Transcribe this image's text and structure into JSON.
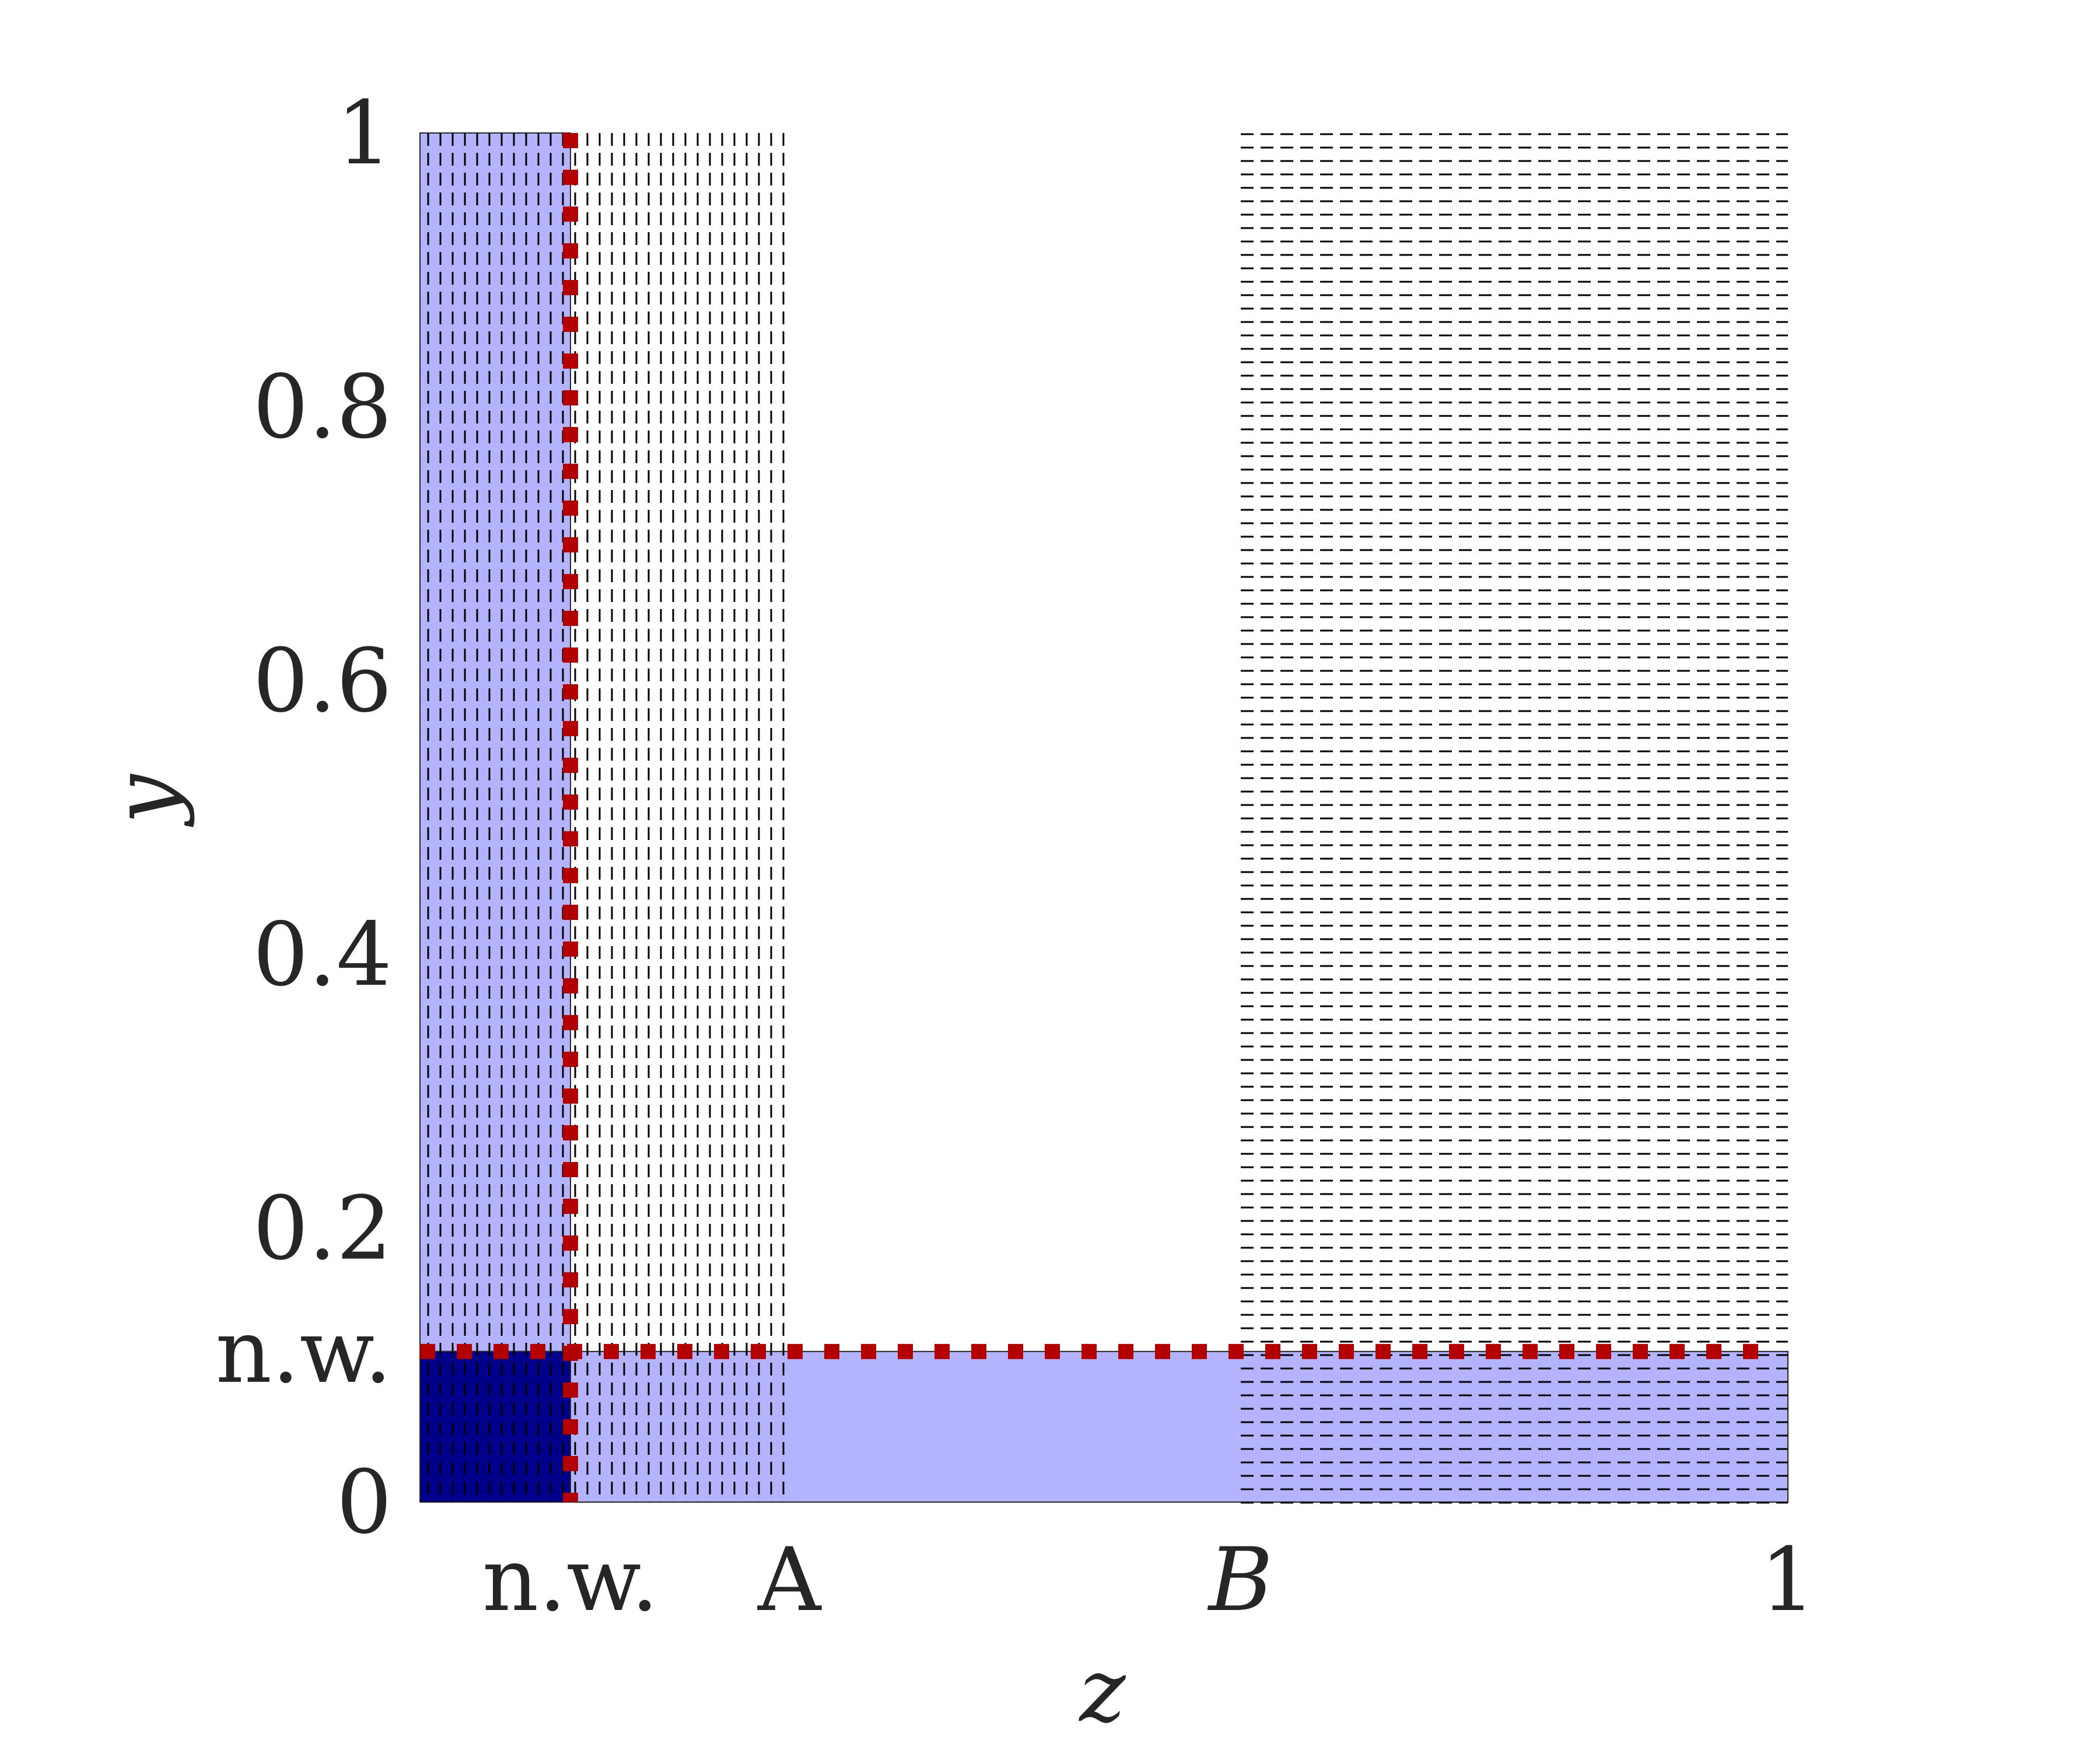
{
  "chart_data": {
    "type": "region-diagram",
    "xlabel": "z",
    "ylabel": "y",
    "xlim": [
      0,
      1
    ],
    "ylim": [
      0,
      1
    ],
    "x_ticks": [
      {
        "value": 0.11,
        "label": "n.w."
      },
      {
        "value": 0.27,
        "label": "A"
      },
      {
        "value": 0.6,
        "label": "B",
        "italic": true
      },
      {
        "value": 1.0,
        "label": "1"
      }
    ],
    "y_ticks": [
      {
        "value": 0,
        "label": "0"
      },
      {
        "value": 0.11,
        "label": "n.w."
      },
      {
        "value": 0.2,
        "label": "0.2"
      },
      {
        "value": 0.4,
        "label": "0.4"
      },
      {
        "value": 0.6,
        "label": "0.6"
      },
      {
        "value": 0.8,
        "label": "0.8"
      },
      {
        "value": 1.0,
        "label": "1"
      }
    ],
    "shaded_regions": [
      {
        "name": "vertical-strip",
        "x": [
          0,
          0.11
        ],
        "y": [
          0,
          1
        ],
        "color": "#b3b3ff"
      },
      {
        "name": "horizontal-strip",
        "x": [
          0,
          1
        ],
        "y": [
          0,
          0.11
        ],
        "color": "#b3b3ff"
      },
      {
        "name": "overlap-corner",
        "x": [
          0,
          0.11
        ],
        "y": [
          0,
          0.11
        ],
        "color": "#00008b"
      }
    ],
    "hatched_regions": [
      {
        "name": "vertical-hatch",
        "x": [
          0,
          0.27
        ],
        "y": [
          0,
          1
        ],
        "orientation": "vertical"
      },
      {
        "name": "horizontal-hatch",
        "x": [
          0.6,
          1.0
        ],
        "y": [
          0,
          1
        ],
        "orientation": "horizontal"
      }
    ],
    "boundary_lines": [
      {
        "name": "vertical-boundary",
        "x": [
          0.11,
          0.11
        ],
        "y": [
          0,
          1
        ],
        "color": "#b30000"
      },
      {
        "name": "horizontal-boundary",
        "x": [
          0,
          0.99
        ],
        "y": [
          0.11,
          0.11
        ],
        "color": "#b30000"
      }
    ],
    "colors": {
      "light_region": "#b3b3ff",
      "dark_region": "#00008b",
      "boundary": "#b30000",
      "hatch": "#000000",
      "text": "#262626"
    }
  }
}
